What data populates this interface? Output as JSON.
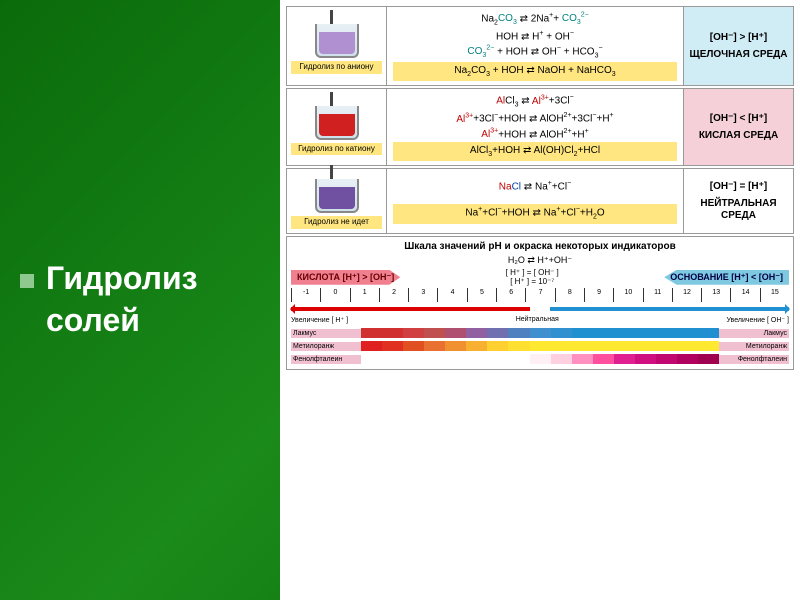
{
  "title_line1": "Гидролиз",
  "title_line2": "солей",
  "rows": [
    {
      "beaker_label": "Гидролиз по аниону",
      "liquid_color": "#b090d0",
      "equations": [
        {
          "html": "Na<sub>2</sub><span class='c-teal'>CO<sub>3</sub></span> <span class='arr'>⇄</span> 2Na<sup>+</sup>+ <span class='c-teal'>CO<sub>3</sub><sup>2−</sup></span>"
        },
        {
          "html": "HOH <span class='arr'>⇄</span> H<sup>+</sup> + OH<sup>−</sup>"
        },
        {
          "html": "<span class='c-teal'>CO<sub>3</sub><sup>2−</sup></span> + HOH <span class='arr'>⇄</span> OH<sup>−</sup> + HCO<sub>3</sub><sup>−</sup>"
        },
        {
          "html": "Na<sub>2</sub>CO<sub>3</sub> + HOH <span class='arr'>⇄</span> NaOH + NaHCO<sub>3</sub>",
          "hl": true
        }
      ],
      "result_bg": "#d0ecf5",
      "result_ineq": "[OH⁻] > [H⁺]",
      "result_label": "ЩЕЛОЧНАЯ СРЕДА"
    },
    {
      "beaker_label": "Гидролиз по катиону",
      "liquid_color": "#d02020",
      "equations": [
        {
          "html": "<span class='c-red'>Al</span>Cl<sub>3</sub> <span class='arr'>⇄</span> <span class='c-red'>Al<sup>3+</sup></span>+3Cl<sup>−</sup>"
        },
        {
          "html": "<span class='c-red'>Al<sup>3+</sup></span>+3Cl<sup>−</sup>+HOH <span class='arr'>⇄</span> AlOH<sup>2+</sup>+3Cl<sup>−</sup>+H<sup>+</sup>"
        },
        {
          "html": "<span class='c-red'>Al<sup>3+</sup></span>+HOH <span class='arr'>⇄</span> AlOH<sup>2+</sup>+H<sup>+</sup>"
        },
        {
          "html": "AlCl<sub>3</sub>+HOH <span class='arr'>⇄</span> Al(OH)Cl<sub>2</sub>+HCl",
          "hl": true
        }
      ],
      "result_bg": "#f5d0d8",
      "result_ineq": "[OH⁻] < [H⁺]",
      "result_label": "КИСЛАЯ СРЕДА"
    },
    {
      "beaker_label": "Гидролиз не идет",
      "liquid_color": "#7050a0",
      "equations": [
        {
          "html": "<span class='c-red'>Na</span><span class='c-blue'>Cl</span> <span class='arr'>⇄</span> Na<sup>+</sup>+Cl<sup>−</sup>"
        },
        {
          "html": "Na<sup>+</sup>+Cl<sup>−</sup>+HOH <span class='arr'>⇄</span> Na<sup>+</sup>+Cl<sup>−</sup>+H<sub>2</sub>O",
          "hl": true
        }
      ],
      "result_bg": "#ffffff",
      "result_ineq": "[OH⁻] = [H⁺]",
      "result_label": "НЕЙТРАЛЬНАЯ СРЕДА"
    }
  ],
  "ph": {
    "title": "Шкала значений pH и окраска некоторых индикаторов",
    "water_eq": "H₂O ⇄ H⁺+OH⁻",
    "mid_eq1": "[ H⁺ ] = [ OH⁻ ]",
    "mid_eq2": "[ H⁺ ] = 10⁻⁷",
    "acid_label": "КИСЛОТА [H⁺] > [OH⁻]",
    "base_label": "ОСНОВАНИЕ [H⁺] < [OH⁻]",
    "ticks": [
      "-1",
      "0",
      "1",
      "2",
      "3",
      "4",
      "5",
      "6",
      "7",
      "8",
      "9",
      "10",
      "11",
      "12",
      "13",
      "14",
      "15"
    ],
    "inc_h": "Увеличение [ H⁺ ]",
    "neutral": "Нейтральная",
    "inc_oh": "Увеличение [ OH⁻ ]",
    "indicators": [
      {
        "name": "Лакмус",
        "colors": [
          "#d03030",
          "#d03030",
          "#d04040",
          "#c05050",
          "#b05070",
          "#9060a0",
          "#7070b0",
          "#5080c0",
          "#4090d0",
          "#3090d0",
          "#2090d0",
          "#2090d0",
          "#2090d0",
          "#2090d0",
          "#2090d0",
          "#2090d0",
          "#2090d0"
        ]
      },
      {
        "name": "Метилоранж",
        "colors": [
          "#e02020",
          "#e03020",
          "#e05020",
          "#e87030",
          "#f09030",
          "#f8b030",
          "#ffd030",
          "#ffe030",
          "#ffe830",
          "#ffe830",
          "#ffe830",
          "#ffe830",
          "#ffe830",
          "#ffe830",
          "#ffe830",
          "#ffe830",
          "#ffe830"
        ]
      },
      {
        "name": "Фенолфталеин",
        "colors": [
          "#ffffff",
          "#ffffff",
          "#ffffff",
          "#ffffff",
          "#ffffff",
          "#ffffff",
          "#ffffff",
          "#ffffff",
          "#fff0f5",
          "#ffd0e0",
          "#ff90c0",
          "#ff50a0",
          "#e02090",
          "#d01080",
          "#c00870",
          "#b00060",
          "#a00050"
        ]
      }
    ]
  }
}
